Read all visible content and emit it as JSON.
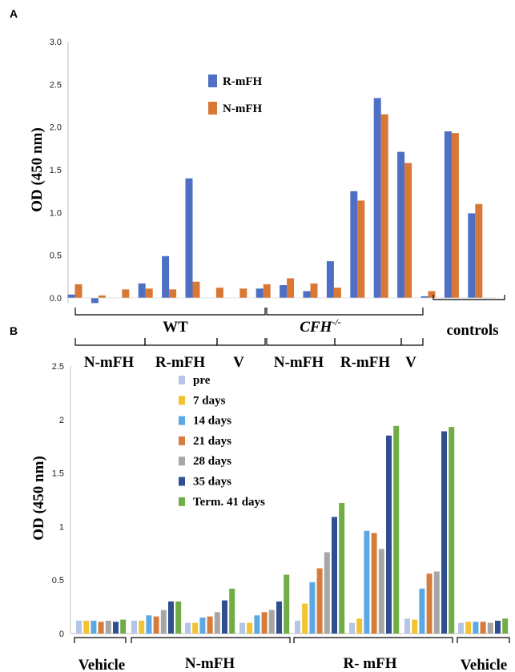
{
  "chart_data": [
    {
      "panel_label": "A",
      "type": "bar",
      "ylabel": "OD (450 nm)",
      "ylim": [
        0,
        3.0
      ],
      "yticks": [
        "0.0",
        "0.5",
        "1.0",
        "1.5",
        "2.0",
        "2.5",
        "3.0"
      ],
      "legend_position": "top-center",
      "series": [
        {
          "name": "R-mFH",
          "color": "#4f6fc4"
        },
        {
          "name": "N-mFH",
          "color": "#d97835"
        }
      ],
      "bar_groups": [
        [
          0.04,
          0.16
        ],
        [
          -0.06,
          0.03
        ],
        [
          0.0,
          0.1
        ],
        [
          0.17,
          0.11
        ],
        [
          0.49,
          0.1
        ],
        [
          1.4,
          0.19
        ],
        [
          0.0,
          0.12
        ],
        [
          0.0,
          0.11
        ],
        [
          0.11,
          0.16
        ],
        [
          0.15,
          0.23
        ],
        [
          0.08,
          0.17
        ],
        [
          0.43,
          0.12
        ],
        [
          1.25,
          1.14
        ],
        [
          2.34,
          2.15
        ],
        [
          1.71,
          1.58
        ],
        [
          0.02,
          0.08
        ],
        [
          1.95,
          1.93
        ],
        [
          0.99,
          1.1
        ]
      ],
      "group_labels_upper": [
        "WT",
        "CFH",
        "controls"
      ],
      "cfh_superscript": "-/-",
      "group_labels_lower": [
        "N-mFH",
        "R-mFH",
        "V",
        "N-mFH",
        "R-mFH",
        "V"
      ]
    },
    {
      "panel_label": "B",
      "type": "bar",
      "ylabel": "OD (450 nm)",
      "ylim": [
        0,
        2.5
      ],
      "yticks": [
        "0",
        "0.5",
        "1",
        "1.5",
        "2",
        "2.5"
      ],
      "legend_position": "top-center",
      "series": [
        {
          "name": "pre",
          "color": "#b4c5e6"
        },
        {
          "name": "7 days",
          "color": "#f2c230"
        },
        {
          "name": "14 days",
          "color": "#5aa9e6"
        },
        {
          "name": "21 days",
          "color": "#d67c3d"
        },
        {
          "name": "28 days",
          "color": "#a6a6a6"
        },
        {
          "name": "35 days",
          "color": "#2f4f8f"
        },
        {
          "name": "Term. 41 days",
          "color": "#70ad47"
        }
      ],
      "bar_groups": [
        [
          0.12,
          0.12,
          0.12,
          0.11,
          0.12,
          0.11,
          0.13
        ],
        [
          0.12,
          0.12,
          0.17,
          0.16,
          0.22,
          0.3,
          0.3
        ],
        [
          0.1,
          0.1,
          0.15,
          0.16,
          0.2,
          0.31,
          0.42
        ],
        [
          0.1,
          0.1,
          0.17,
          0.2,
          0.22,
          0.3,
          0.55
        ],
        [
          0.12,
          0.28,
          0.48,
          0.61,
          0.76,
          1.09,
          1.22
        ],
        [
          0.1,
          0.14,
          0.96,
          0.94,
          0.79,
          1.85,
          1.94
        ],
        [
          0.14,
          0.13,
          0.42,
          0.56,
          0.58,
          1.89,
          1.93
        ],
        [
          0.1,
          0.11,
          0.11,
          0.11,
          0.1,
          0.12,
          0.14
        ]
      ],
      "group_labels": [
        "Vehicle",
        "N-mFH",
        "R- mFH",
        "Vehicle"
      ]
    }
  ]
}
